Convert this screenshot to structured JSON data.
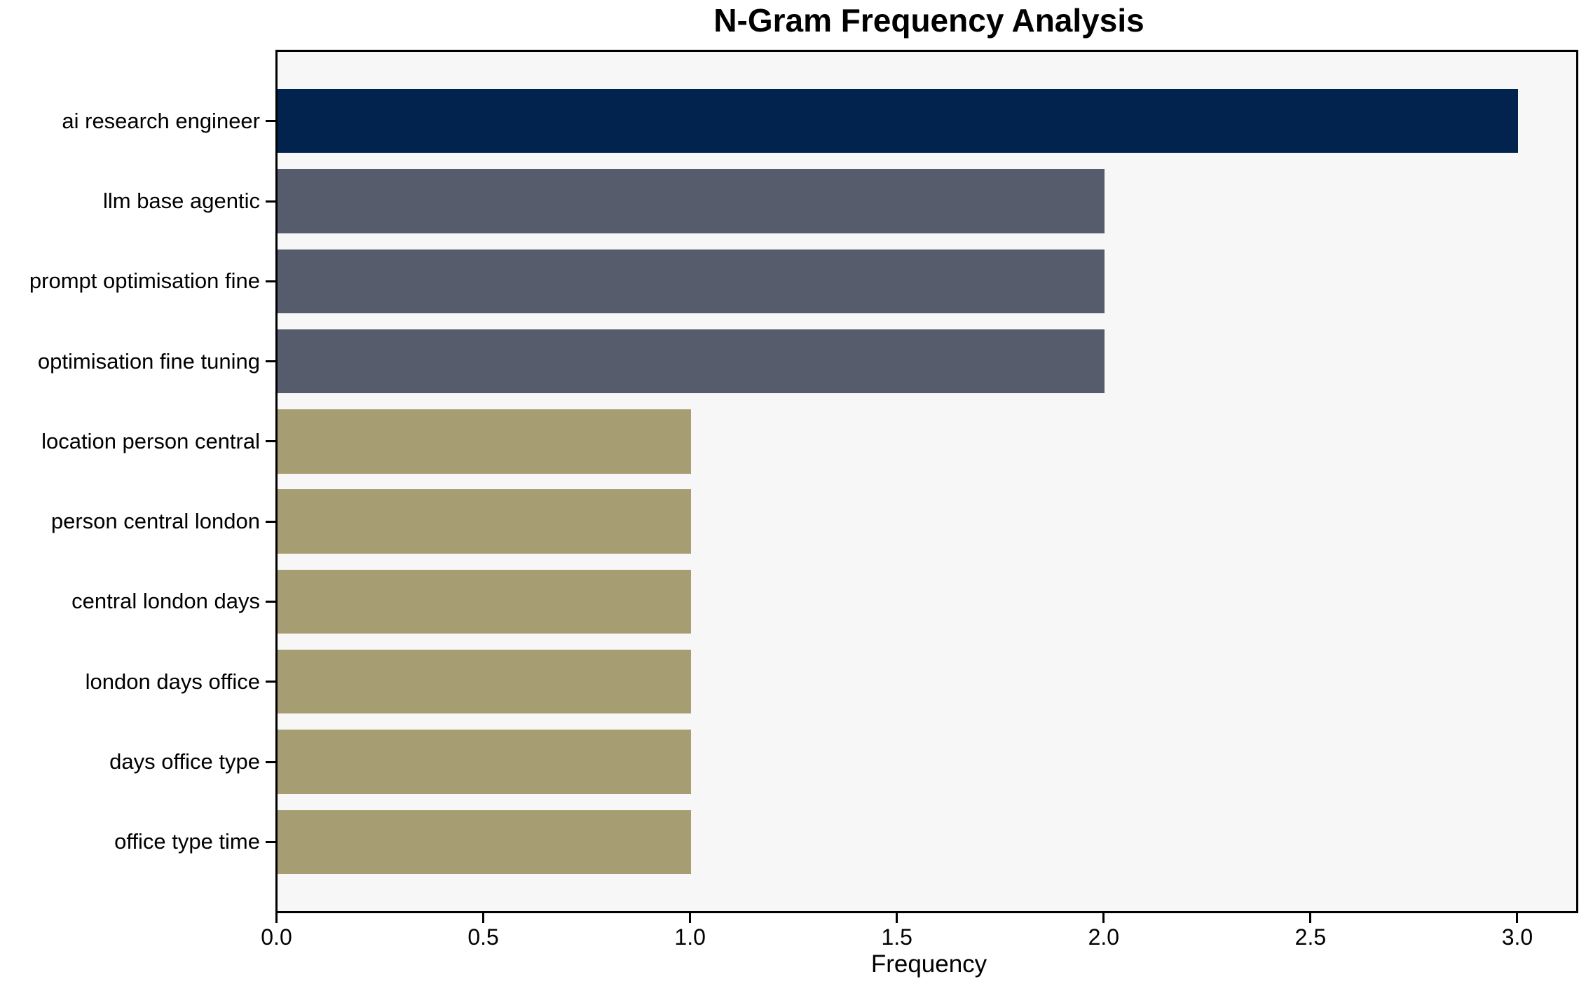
{
  "chart_data": {
    "type": "bar",
    "orientation": "horizontal",
    "title": "N-Gram Frequency Analysis",
    "xlabel": "Frequency",
    "ylabel": "",
    "categories": [
      "ai research engineer",
      "llm base agentic",
      "prompt optimisation fine",
      "optimisation fine tuning",
      "location person central",
      "person central london",
      "central london days",
      "london days office",
      "days office type",
      "office type time"
    ],
    "values": [
      3,
      2,
      2,
      2,
      1,
      1,
      1,
      1,
      1,
      1
    ],
    "bar_colors": [
      "#01234d",
      "#565c6b",
      "#565c6b",
      "#565c6b",
      "#a69d73",
      "#a69d73",
      "#a69d73",
      "#a69d73",
      "#a69d73",
      "#a69d73"
    ],
    "xlim": [
      0,
      3.15
    ],
    "x_ticks": [
      "0.0",
      "0.5",
      "1.0",
      "1.5",
      "2.0",
      "2.5",
      "3.0"
    ],
    "x_tick_values": [
      0,
      0.5,
      1.0,
      1.5,
      2.0,
      2.5,
      3.0
    ],
    "grid": false,
    "legend": null,
    "plot_background": "#f7f7f7",
    "figure_background": "#ffffff",
    "axis_color": "#000000"
  }
}
